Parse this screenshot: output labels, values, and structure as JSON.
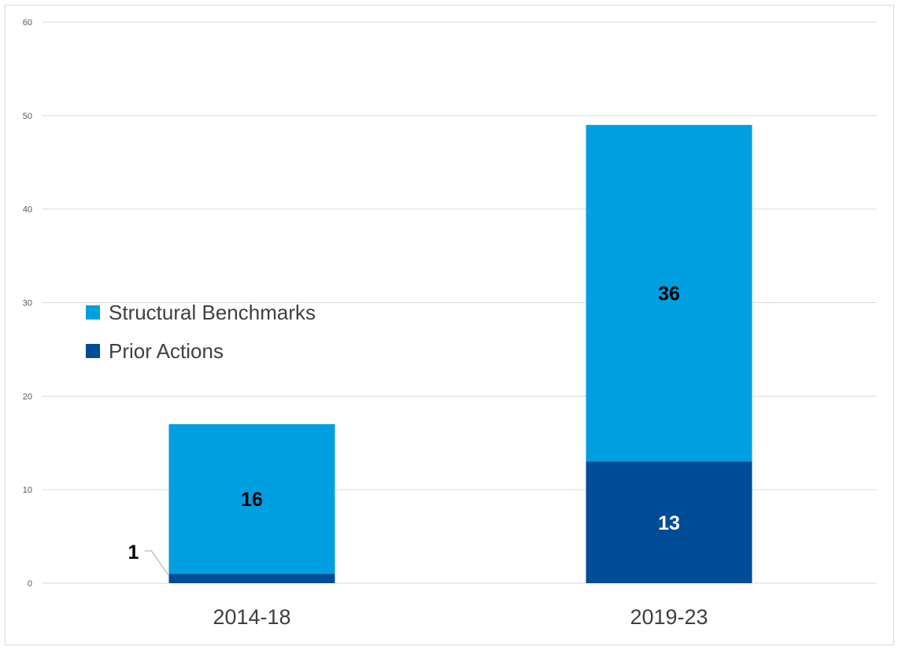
{
  "chart_data": {
    "type": "bar",
    "stacked": true,
    "categories": [
      "2014-18",
      "2019-23"
    ],
    "series": [
      {
        "name": "Prior Actions",
        "values": [
          1,
          13
        ],
        "color": "#004c97",
        "label_color": "#ffffff"
      },
      {
        "name": "Structural Benchmarks",
        "values": [
          16,
          36
        ],
        "color": "#009fdf",
        "label_color": "#000000"
      }
    ],
    "title": "",
    "xlabel": "",
    "ylabel": "",
    "ylim": [
      0,
      60
    ],
    "yticks": [
      0,
      10,
      20,
      30,
      40,
      50,
      60
    ],
    "ytick_labels": [
      "0",
      "10",
      "20",
      "30",
      "40",
      "50",
      "60"
    ],
    "grid": true,
    "legend": {
      "placement": "left",
      "order": [
        "Structural Benchmarks",
        "Prior Actions"
      ]
    },
    "data_labels": [
      {
        "category": "2014-18",
        "series": "Prior Actions",
        "text": "1",
        "leader_line": true
      },
      {
        "category": "2014-18",
        "series": "Structural Benchmarks",
        "text": "16"
      },
      {
        "category": "2019-23",
        "series": "Prior Actions",
        "text": "13"
      },
      {
        "category": "2019-23",
        "series": "Structural Benchmarks",
        "text": "36"
      }
    ],
    "colors": {
      "gridline": "#d9d9d9",
      "tick_text": "#595959",
      "category_text": "#404040"
    }
  }
}
